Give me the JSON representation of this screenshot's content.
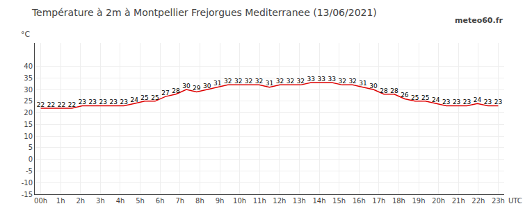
{
  "chart_data": {
    "type": "line",
    "title": "Température à 2m à Montpellier Frejorgues Mediterranee (13/06/2021)",
    "ylabel": "°C",
    "xlabel": "UTC",
    "annotations": [
      "meteo60.fr"
    ],
    "x": [
      0,
      0.5227272727,
      1.0454545455,
      1.5681818182,
      2.0909090909,
      2.6136363636,
      3.1363636364,
      3.6590909091,
      4.1818181818,
      4.7045454545,
      5.2272727273,
      5.75,
      6.2727272727,
      6.7954545455,
      7.3181818182,
      7.8409090909,
      8.3636363636,
      8.8863636364,
      9.4090909091,
      9.9318181818,
      10.4545454545,
      10.9772727273,
      11.5,
      12.0227272727,
      12.5454545455,
      13.0681818182,
      13.5909090909,
      14.1136363636,
      14.6363636364,
      15.1590909091,
      15.6818181818,
      16.2045454545,
      16.7272727273,
      17.25,
      17.7727272727,
      18.2954545455,
      18.8181818182,
      19.3409090909,
      19.8636363636,
      20.3863636364,
      20.9090909091,
      21.4318181818,
      21.9545454545,
      22.4772727273,
      23
    ],
    "values": [
      22,
      22,
      22,
      22,
      23,
      23,
      23,
      23,
      23,
      24,
      25,
      25,
      27,
      28,
      30,
      29,
      30,
      31,
      32,
      32,
      32,
      32,
      31,
      32,
      32,
      32,
      33,
      33,
      33,
      32,
      32,
      31,
      30,
      28,
      28,
      26,
      25,
      25,
      24,
      23,
      23,
      23,
      24,
      23,
      23
    ],
    "color": "#dd0000",
    "data_labels": true,
    "grid": true,
    "xlim": [
      -0.3,
      23.3
    ],
    "xticks": [
      {
        "value": 0,
        "label": "00h"
      },
      {
        "value": 1,
        "label": "1h"
      },
      {
        "value": 2,
        "label": "2h"
      },
      {
        "value": 3,
        "label": "3h"
      },
      {
        "value": 4,
        "label": "4h"
      },
      {
        "value": 5,
        "label": "5h"
      },
      {
        "value": 6,
        "label": "6h"
      },
      {
        "value": 7,
        "label": "7h"
      },
      {
        "value": 8,
        "label": "8h"
      },
      {
        "value": 9,
        "label": "9h"
      },
      {
        "value": 10,
        "label": "10h"
      },
      {
        "value": 11,
        "label": "11h"
      },
      {
        "value": 12,
        "label": "12h"
      },
      {
        "value": 13,
        "label": "13h"
      },
      {
        "value": 14,
        "label": "14h"
      },
      {
        "value": 15,
        "label": "15h"
      },
      {
        "value": 16,
        "label": "16h"
      },
      {
        "value": 17,
        "label": "17h"
      },
      {
        "value": 18,
        "label": "18h"
      },
      {
        "value": 19,
        "label": "19h"
      },
      {
        "value": 20,
        "label": "20h"
      },
      {
        "value": 21,
        "label": "21h"
      },
      {
        "value": 22,
        "label": "22h"
      },
      {
        "value": 23,
        "label": "23h"
      }
    ],
    "ylim": [
      -15,
      50
    ],
    "yticks": [
      -15,
      -10,
      -5,
      0,
      5,
      10,
      15,
      20,
      25,
      30,
      35,
      40
    ]
  }
}
